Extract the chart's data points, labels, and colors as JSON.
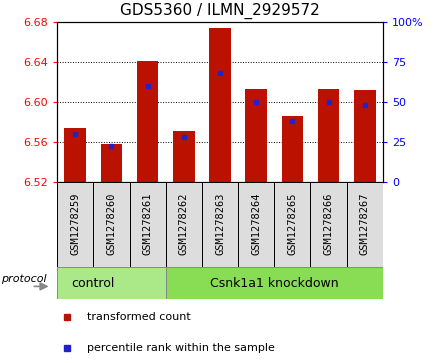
{
  "title": "GDS5360 / ILMN_2929572",
  "samples": [
    "GSM1278259",
    "GSM1278260",
    "GSM1278261",
    "GSM1278262",
    "GSM1278263",
    "GSM1278264",
    "GSM1278265",
    "GSM1278266",
    "GSM1278267"
  ],
  "red_values": [
    6.574,
    6.558,
    6.641,
    6.571,
    6.674,
    6.613,
    6.586,
    6.613,
    6.612
  ],
  "blue_values_pct": [
    30,
    22,
    60,
    28,
    68,
    50,
    38,
    50,
    48
  ],
  "ylim_left": [
    6.52,
    6.68
  ],
  "ylim_right": [
    0,
    100
  ],
  "yticks_left": [
    6.52,
    6.56,
    6.6,
    6.64,
    6.68
  ],
  "yticks_right": [
    0,
    25,
    50,
    75,
    100
  ],
  "control_samples": 3,
  "protocol_labels": [
    "control",
    "Csnk1a1 knockdown"
  ],
  "bar_color": "#bb1100",
  "blue_color": "#2222cc",
  "control_color": "#aae888",
  "knockdown_color": "#88dd55",
  "bar_width": 0.6,
  "base_value": 6.52,
  "tick_label_fontsize": 7.5,
  "title_fontsize": 11
}
